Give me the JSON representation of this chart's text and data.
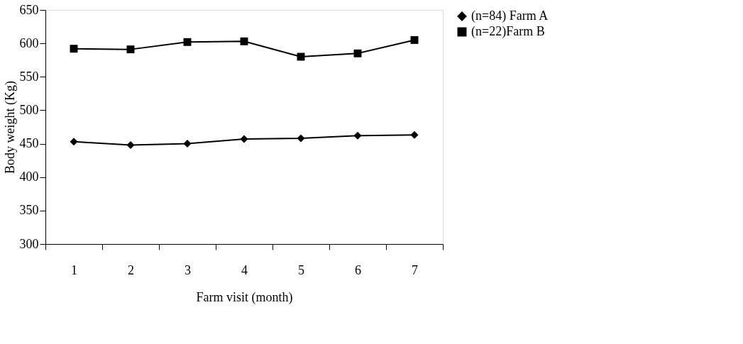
{
  "chart_data": {
    "type": "line",
    "xlabel": "Farm visit (month)",
    "ylabel": "Body weight (Kg)",
    "categories": [
      "1",
      "2",
      "3",
      "4",
      "5",
      "6",
      "7"
    ],
    "series": [
      {
        "name": "(n=84) Farm A",
        "color": "#000000",
        "marker": "diamond",
        "values": [
          453,
          448,
          450,
          457,
          458,
          462,
          463
        ]
      },
      {
        "name": "(n=22)Farm B",
        "color": "#000000",
        "marker": "square",
        "values": [
          592,
          591,
          602,
          603,
          580,
          585,
          605
        ]
      }
    ],
    "ylim": [
      300,
      650
    ],
    "yticks": [
      300,
      350,
      400,
      450,
      500,
      550,
      600,
      650
    ],
    "grid": false,
    "legend": "right",
    "line_style": "solid"
  }
}
